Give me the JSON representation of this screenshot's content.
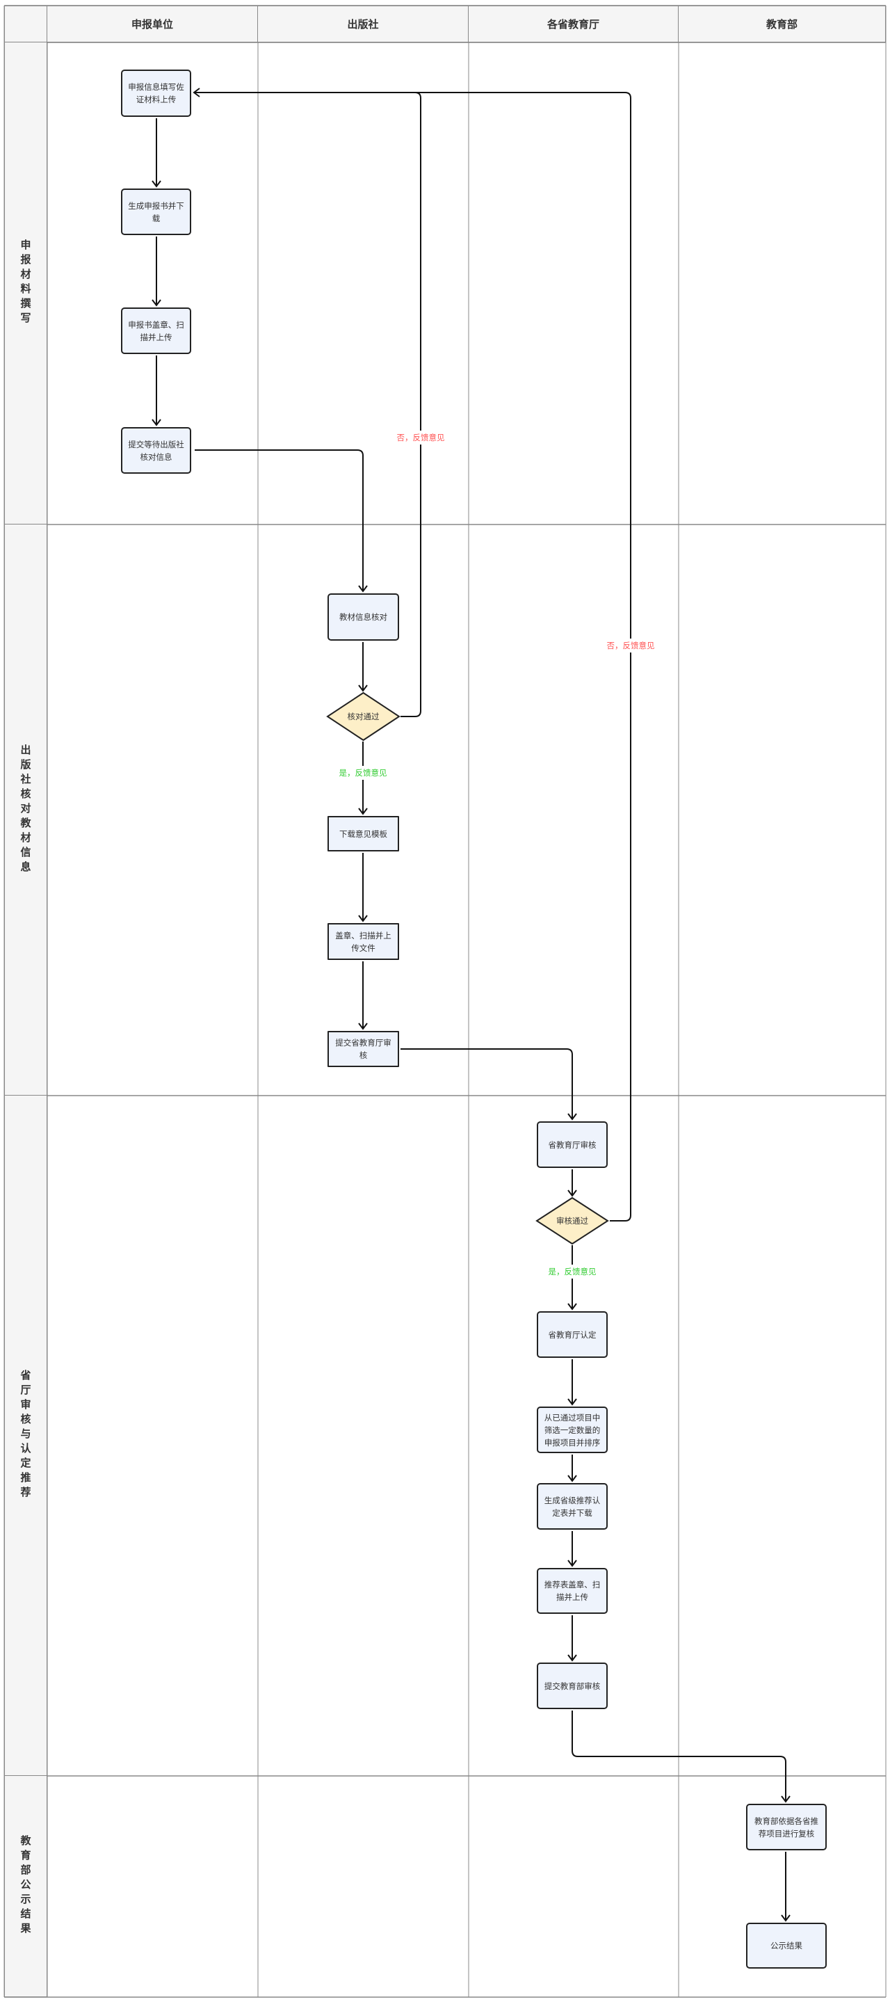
{
  "columns": [
    "申报单位",
    "出版社",
    "各省教育厅",
    "教育部"
  ],
  "lanes": [
    "申报材料撰写",
    "出版社核对教材信息",
    "省厅审核与认定推荐",
    "教育部公示结果"
  ],
  "nodes": {
    "n1": "申报信息填写佐证材料上传",
    "n2": "生成申报书并下载",
    "n3": "申报书盖章、扫描并上传",
    "n4": "提交等待出版社核对信息",
    "n5": "教材信息核对",
    "d1": "核对通过",
    "n6": "下载意见模板",
    "n7": "盖章、扫描并上传文件",
    "n8": "提交省教育厅审核",
    "n9": "省教育厅审核",
    "d2": "审核通过",
    "n10": "省教育厅认定",
    "n11": "从已通过项目中筛选一定数量的申报项目并排序",
    "n12": "生成省级推荐认定表并下载",
    "n13": "推荐表盖章、扫描并上传",
    "n14": "提交教育部审核",
    "n15": "教育部依据各省推荐项目进行复核",
    "n16": "公示结果"
  },
  "edge_labels": {
    "no1": "否，反馈意见",
    "no2": "否，反馈意见",
    "yes1": "是，反馈意见",
    "yes2": "是，反馈意见"
  },
  "colors": {
    "node_fill": "#eef3fc",
    "decision_fill": "#fdefc8",
    "no_label": "#ff5555",
    "yes_label": "#33cc33",
    "header_fill": "#f5f5f5"
  }
}
